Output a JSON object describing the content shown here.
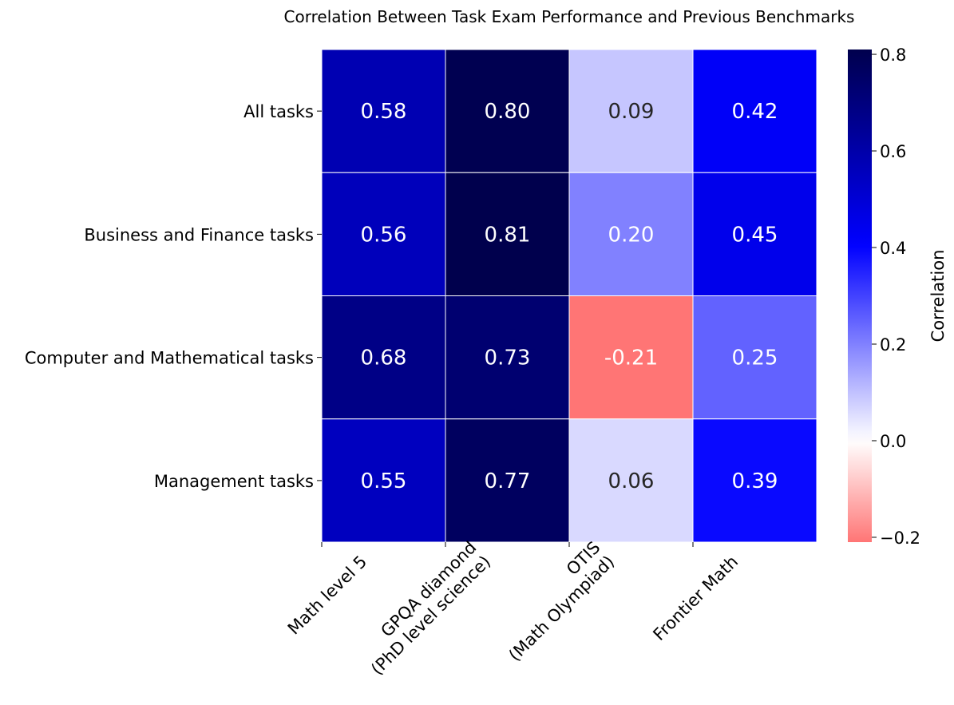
{
  "chart_data": {
    "type": "heatmap",
    "title": "Correlation Between Task Exam Performance and Previous Benchmarks",
    "xlabel": "",
    "ylabel": "",
    "columns": [
      [
        "Math level 5"
      ],
      [
        "GPQA diamond",
        "(PhD level science)"
      ],
      [
        "OTIS",
        "(Math Olympiad)"
      ],
      [
        "Frontier Math"
      ]
    ],
    "rows": [
      "All tasks",
      "Business and Finance tasks",
      "Computer and Mathematical tasks",
      "Management tasks"
    ],
    "values": [
      [
        0.58,
        0.8,
        0.09,
        0.42
      ],
      [
        0.56,
        0.81,
        0.2,
        0.45
      ],
      [
        0.68,
        0.73,
        -0.21,
        0.25
      ],
      [
        0.55,
        0.77,
        0.06,
        0.39
      ]
    ],
    "colorbar": {
      "label": "Correlation",
      "vmin": -0.21,
      "vmax": 0.81,
      "center": 0.0,
      "ticks": [
        -0.2,
        0.0,
        0.2,
        0.4,
        0.6,
        0.8
      ],
      "tick_labels": [
        "−0.2",
        "0.0",
        "0.2",
        "0.4",
        "0.6",
        "0.8"
      ],
      "cmap": "seismic"
    },
    "grid": false,
    "legend": "colorbar-right"
  }
}
